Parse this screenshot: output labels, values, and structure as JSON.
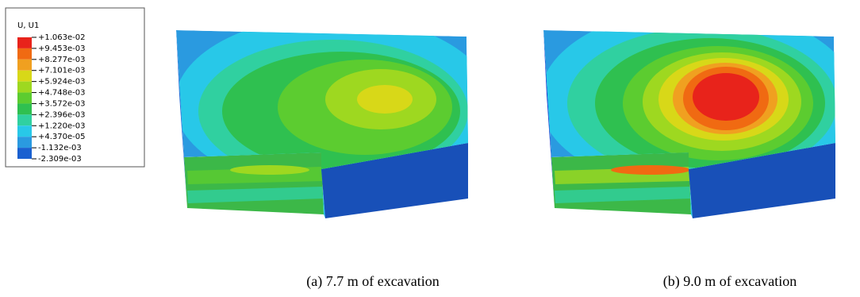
{
  "legend": {
    "title": "U, U1",
    "labels": [
      "+1.063e-02",
      "+9.453e-03",
      "+8.277e-03",
      "+7.101e-03",
      "+5.924e-03",
      "+4.748e-03",
      "+3.572e-03",
      "+2.396e-03",
      "+1.220e-03",
      "+4.370e-05",
      "-1.132e-03",
      "-2.309e-03"
    ],
    "colors": [
      "#e8231b",
      "#f06a12",
      "#f0a020",
      "#d8d818",
      "#9ed820",
      "#5ccc30",
      "#2fc050",
      "#30d0a0",
      "#28c8e8",
      "#2a9ae0",
      "#1a60d0",
      "#1a2ad0"
    ]
  },
  "captions": [
    "(a) 7.7 m of excavation",
    "(b) 9.0 m of excavation"
  ]
}
